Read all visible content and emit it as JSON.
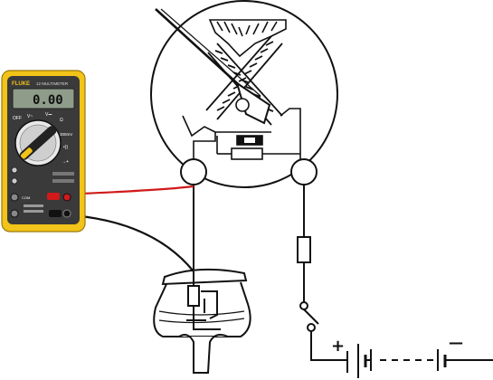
{
  "multimeter": {
    "brand": "FLUKE",
    "model": "12 MULTIMETER",
    "display_value": "0.00",
    "off_label": "OFF",
    "dial_marks": [
      "V~",
      "V⎓",
      "Ω",
      "300mV",
      "•))",
      "→+"
    ],
    "body_color": "#f2c318",
    "face_color": "#3a3a3a"
  },
  "battery": {
    "positive_label": "+",
    "negative_label": "—"
  },
  "leads": {
    "red_color": "#d11a1a",
    "black_color": "#111111"
  },
  "components": {
    "gauge": "fuel-gauge-dial",
    "sender": "fuel-tank-sender",
    "fuse": "inline-fuse",
    "switch": "ignition-switch"
  }
}
